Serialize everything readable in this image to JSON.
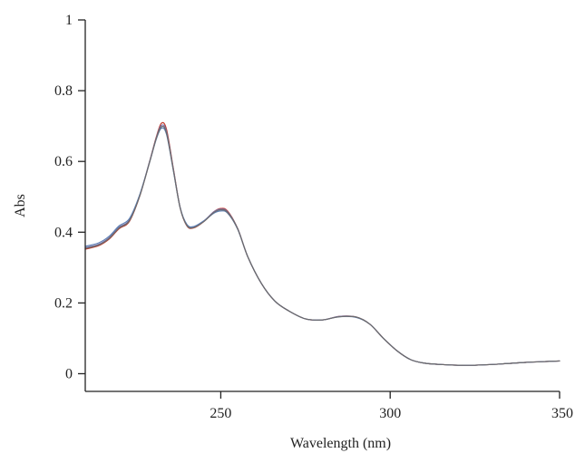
{
  "chart_data": {
    "type": "line",
    "title": "",
    "xlabel": "Wavelength (nm)",
    "ylabel": "Abs",
    "xlim": [
      210,
      350
    ],
    "ylim": [
      -0.05,
      1
    ],
    "x_ticks": [
      250,
      300,
      350
    ],
    "y_ticks": [
      0,
      0.2,
      0.4,
      0.6,
      0.8,
      1
    ],
    "x_tick_labels": [
      "250",
      "300",
      "350"
    ],
    "y_tick_labels": [
      "0",
      "0.2",
      "0.4",
      "0.6",
      "0.8",
      "1"
    ],
    "grid": false,
    "legend": "none",
    "series": [
      {
        "color": "#c0392b",
        "points": [
          [
            210,
            0.352
          ],
          [
            214,
            0.362
          ],
          [
            217,
            0.38
          ],
          [
            220,
            0.41
          ],
          [
            223,
            0.43
          ],
          [
            226,
            0.5
          ],
          [
            229,
            0.6
          ],
          [
            231,
            0.67
          ],
          [
            232.5,
            0.708
          ],
          [
            234,
            0.69
          ],
          [
            236,
            0.58
          ],
          [
            238,
            0.47
          ],
          [
            240,
            0.418
          ],
          [
            242,
            0.412
          ],
          [
            245,
            0.43
          ],
          [
            248,
            0.458
          ],
          [
            250,
            0.467
          ],
          [
            252,
            0.46
          ],
          [
            255,
            0.41
          ],
          [
            258,
            0.33
          ],
          [
            262,
            0.255
          ],
          [
            266,
            0.205
          ],
          [
            270,
            0.178
          ],
          [
            275,
            0.155
          ],
          [
            280,
            0.152
          ],
          [
            285,
            0.162
          ],
          [
            290,
            0.16
          ],
          [
            294,
            0.14
          ],
          [
            298,
            0.1
          ],
          [
            302,
            0.065
          ],
          [
            306,
            0.04
          ],
          [
            310,
            0.03
          ],
          [
            315,
            0.026
          ],
          [
            320,
            0.024
          ],
          [
            325,
            0.024
          ],
          [
            330,
            0.026
          ],
          [
            335,
            0.029
          ],
          [
            340,
            0.032
          ],
          [
            345,
            0.034
          ],
          [
            350,
            0.036
          ]
        ]
      },
      {
        "color": "#7a6fa8",
        "points": [
          [
            210,
            0.356
          ],
          [
            214,
            0.366
          ],
          [
            217,
            0.384
          ],
          [
            220,
            0.414
          ],
          [
            223,
            0.434
          ],
          [
            226,
            0.502
          ],
          [
            229,
            0.6
          ],
          [
            231,
            0.668
          ],
          [
            232.5,
            0.702
          ],
          [
            234,
            0.684
          ],
          [
            236,
            0.578
          ],
          [
            238,
            0.47
          ],
          [
            240,
            0.42
          ],
          [
            242,
            0.414
          ],
          [
            245,
            0.432
          ],
          [
            248,
            0.458
          ],
          [
            250,
            0.465
          ],
          [
            252,
            0.458
          ],
          [
            255,
            0.41
          ],
          [
            258,
            0.33
          ],
          [
            262,
            0.255
          ],
          [
            266,
            0.205
          ],
          [
            270,
            0.178
          ],
          [
            275,
            0.155
          ],
          [
            280,
            0.152
          ],
          [
            285,
            0.162
          ],
          [
            290,
            0.16
          ],
          [
            294,
            0.14
          ],
          [
            298,
            0.1
          ],
          [
            302,
            0.065
          ],
          [
            306,
            0.04
          ],
          [
            310,
            0.03
          ],
          [
            315,
            0.026
          ],
          [
            320,
            0.024
          ],
          [
            325,
            0.024
          ],
          [
            330,
            0.026
          ],
          [
            335,
            0.029
          ],
          [
            340,
            0.032
          ],
          [
            345,
            0.034
          ],
          [
            350,
            0.036
          ]
        ]
      },
      {
        "color": "#5d7fb5",
        "points": [
          [
            210,
            0.36
          ],
          [
            214,
            0.37
          ],
          [
            217,
            0.388
          ],
          [
            220,
            0.418
          ],
          [
            223,
            0.438
          ],
          [
            226,
            0.504
          ],
          [
            229,
            0.598
          ],
          [
            231,
            0.664
          ],
          [
            232.5,
            0.694
          ],
          [
            234,
            0.676
          ],
          [
            236,
            0.574
          ],
          [
            238,
            0.47
          ],
          [
            240,
            0.422
          ],
          [
            242,
            0.416
          ],
          [
            245,
            0.432
          ],
          [
            248,
            0.454
          ],
          [
            250,
            0.46
          ],
          [
            252,
            0.454
          ],
          [
            255,
            0.408
          ],
          [
            258,
            0.33
          ],
          [
            262,
            0.255
          ],
          [
            266,
            0.205
          ],
          [
            270,
            0.178
          ],
          [
            275,
            0.155
          ],
          [
            280,
            0.152
          ],
          [
            285,
            0.161
          ],
          [
            290,
            0.159
          ],
          [
            294,
            0.14
          ],
          [
            298,
            0.1
          ],
          [
            302,
            0.065
          ],
          [
            306,
            0.04
          ],
          [
            310,
            0.03
          ],
          [
            315,
            0.026
          ],
          [
            320,
            0.024
          ],
          [
            325,
            0.024
          ],
          [
            330,
            0.026
          ],
          [
            335,
            0.029
          ],
          [
            340,
            0.032
          ],
          [
            345,
            0.034
          ],
          [
            350,
            0.036
          ]
        ]
      },
      {
        "color": "#6b6b6b",
        "points": [
          [
            210,
            0.354
          ],
          [
            214,
            0.364
          ],
          [
            217,
            0.382
          ],
          [
            220,
            0.412
          ],
          [
            223,
            0.432
          ],
          [
            226,
            0.5
          ],
          [
            229,
            0.598
          ],
          [
            231,
            0.666
          ],
          [
            232.5,
            0.698
          ],
          [
            234,
            0.68
          ],
          [
            236,
            0.576
          ],
          [
            238,
            0.469
          ],
          [
            240,
            0.419
          ],
          [
            242,
            0.413
          ],
          [
            245,
            0.43
          ],
          [
            248,
            0.456
          ],
          [
            250,
            0.463
          ],
          [
            252,
            0.456
          ],
          [
            255,
            0.409
          ],
          [
            258,
            0.33
          ],
          [
            262,
            0.255
          ],
          [
            266,
            0.205
          ],
          [
            270,
            0.178
          ],
          [
            275,
            0.155
          ],
          [
            280,
            0.152
          ],
          [
            285,
            0.161
          ],
          [
            290,
            0.16
          ],
          [
            294,
            0.14
          ],
          [
            298,
            0.1
          ],
          [
            302,
            0.065
          ],
          [
            306,
            0.04
          ],
          [
            310,
            0.03
          ],
          [
            315,
            0.026
          ],
          [
            320,
            0.024
          ],
          [
            325,
            0.024
          ],
          [
            330,
            0.026
          ],
          [
            335,
            0.029
          ],
          [
            340,
            0.032
          ],
          [
            345,
            0.034
          ],
          [
            350,
            0.036
          ]
        ]
      }
    ]
  }
}
